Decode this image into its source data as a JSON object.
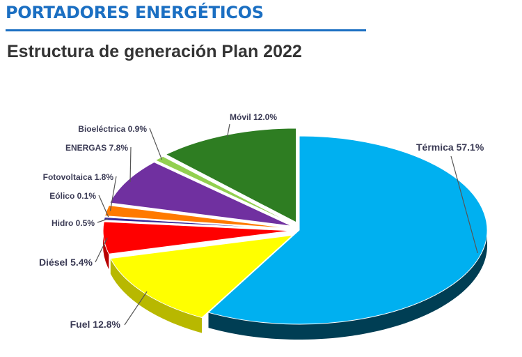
{
  "header": {
    "title": "PORTADORES ENERGÉTICOS",
    "accent_color": "#1b6fc2"
  },
  "chart_data": {
    "type": "pie",
    "title": "Estructura de generación Plan 2022",
    "style": "3d-exploded",
    "slices": [
      {
        "label": "Térmica",
        "value": 57.1,
        "display": "Térmica 57.1%",
        "color": "#00b0f0"
      },
      {
        "label": "Fuel",
        "value": 12.8,
        "display": "Fuel 12.8%",
        "color": "#ffff00"
      },
      {
        "label": "Diésel",
        "value": 5.4,
        "display": "Diésel 5.4%",
        "color": "#ff0000"
      },
      {
        "label": "Hidro",
        "value": 0.5,
        "display": "Hidro 0.5%",
        "color": "#3a2a9a"
      },
      {
        "label": "Eólico",
        "value": 0.1,
        "display": "Eólico 0.1%",
        "color": "#8a6ac0"
      },
      {
        "label": "Fotovoltaica",
        "value": 1.8,
        "display": "Fotovoltaica 1.8%",
        "color": "#ff7a00"
      },
      {
        "label": "ENERGAS",
        "value": 7.8,
        "display": "ENERGAS 7.8%",
        "color": "#7030a0"
      },
      {
        "label": "Bioeléctrica",
        "value": 0.9,
        "display": "Bioeléctrica 0.9%",
        "color": "#92d050"
      },
      {
        "label": "Móvil",
        "value": 12.0,
        "display": "Móvil 12.0%",
        "color": "#2e7d22"
      }
    ]
  }
}
